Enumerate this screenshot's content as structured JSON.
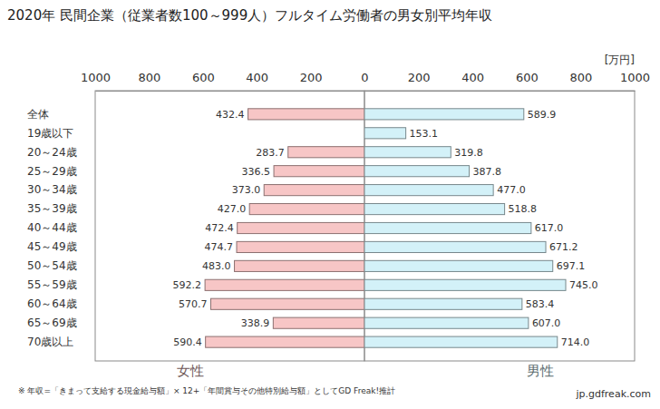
{
  "chart_data": [
    {
      "type": "bar",
      "orientation": "horizontal",
      "title": "2020年 民間企業（従業者数100～999人）フルタイム労働者の男女別平均年収",
      "categories": [
        "全体",
        "19歳以下",
        "20～24歳",
        "25～29歳",
        "30～34歳",
        "35～39歳",
        "40～44歳",
        "45～49歳",
        "50～54歳",
        "55～59歳",
        "60～64歳",
        "65～69歳",
        "70歳以上"
      ],
      "values": [
        432.4,
        null,
        283.7,
        336.5,
        373.0,
        427.0,
        472.4,
        474.7,
        483.0,
        592.2,
        570.7,
        338.9,
        590.4
      ],
      "value_labels": [
        "432.4",
        null,
        "283.7",
        "336.5",
        "373.0",
        "427.0",
        "472.4",
        "474.7",
        "483.0",
        "592.2",
        "570.7",
        "338.9",
        "590.4"
      ],
      "color": "#f7c6c6",
      "xlim": [
        1000,
        0
      ],
      "xticks": [
        1000,
        800,
        600,
        400,
        200,
        0
      ],
      "xlabel": "女性",
      "data_labels": true,
      "grid": false,
      "annotations": [
        "※ 年収=「きまって支給する現金給与額」× 12+「年間賞与その他特別給与額」としてGD Freak!推計"
      ]
    },
    {
      "type": "bar",
      "orientation": "horizontal",
      "categories": [
        "全体",
        "19歳以下",
        "20～24歳",
        "25～29歳",
        "30～34歳",
        "35～39歳",
        "40～44歳",
        "45～49歳",
        "50～54歳",
        "55～59歳",
        "60～64歳",
        "65～69歳",
        "70歳以上"
      ],
      "values": [
        589.9,
        153.1,
        319.8,
        387.8,
        477.0,
        518.8,
        617.0,
        671.2,
        697.1,
        745.0,
        583.4,
        607.0,
        714.0
      ],
      "value_labels": [
        "589.9",
        "153.1",
        "319.8",
        "387.8",
        "477.0",
        "518.8",
        "617.0",
        "671.2",
        "697.1",
        "745.0",
        "583.4",
        "607.0",
        "714.0"
      ],
      "color": "#d3f1f8",
      "xlim": [
        0,
        1000
      ],
      "xticks": [
        200,
        400,
        600,
        800,
        1000
      ],
      "xlabel": "男性",
      "data_labels": true,
      "grid": false,
      "tick_labels": "x",
      "annotations": [
        "[万円]",
        "jp.gdfreak.com"
      ]
    }
  ]
}
